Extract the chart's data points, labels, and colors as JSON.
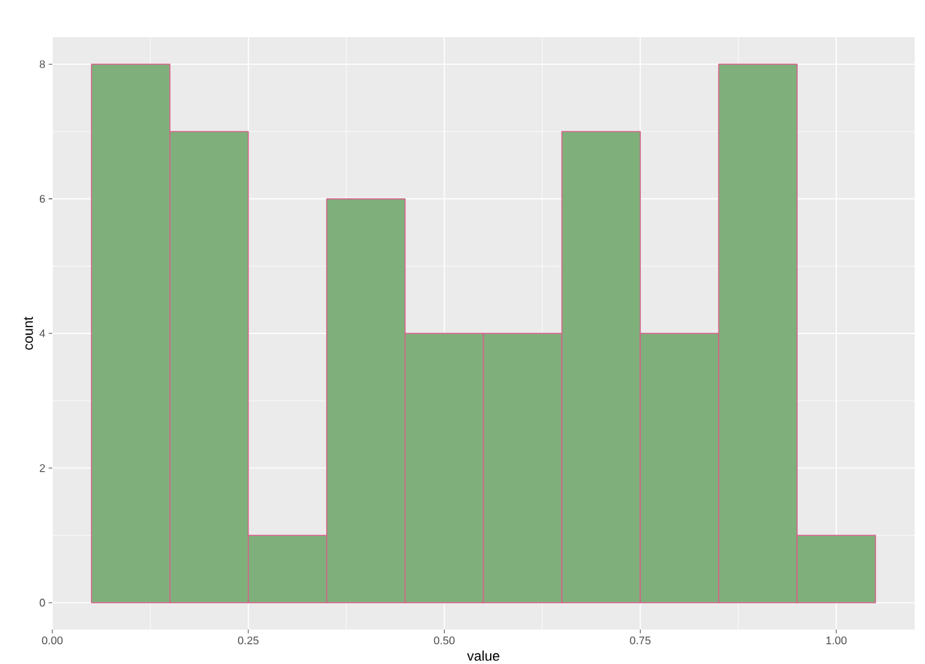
{
  "chart_data": {
    "type": "histogram",
    "xlabel": "value",
    "ylabel": "count",
    "bins": [
      0.05,
      0.15,
      0.25,
      0.35,
      0.45,
      0.55,
      0.65,
      0.75,
      0.85,
      0.95,
      1.05
    ],
    "values": [
      8,
      7,
      1,
      6,
      4,
      4,
      7,
      4,
      8,
      1
    ],
    "color": "#7fb07b",
    "xlim": [
      0.0,
      1.1
    ],
    "ylim": [
      -0.4,
      8.4
    ],
    "xticks": [
      {
        "value": 0,
        "label": "0.00"
      },
      {
        "value": 0.25,
        "label": "0.25"
      },
      {
        "value": 0.5,
        "label": "0.50"
      },
      {
        "value": 0.75,
        "label": "0.75"
      },
      {
        "value": 1,
        "label": "1.00"
      }
    ],
    "yticks": [
      0,
      2,
      4,
      6,
      8
    ],
    "grid": true
  }
}
